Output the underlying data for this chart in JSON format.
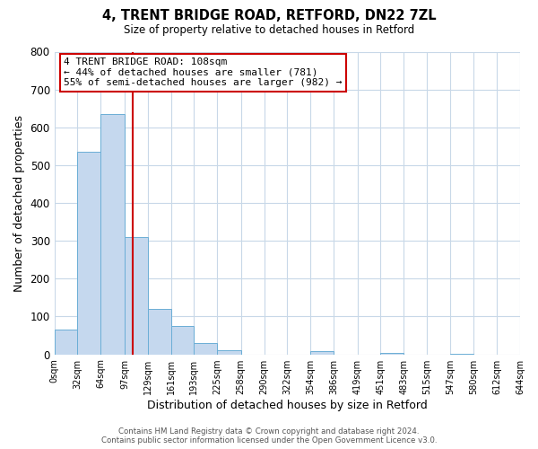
{
  "title": "4, TRENT BRIDGE ROAD, RETFORD, DN22 7ZL",
  "subtitle": "Size of property relative to detached houses in Retford",
  "xlabel": "Distribution of detached houses by size in Retford",
  "ylabel": "Number of detached properties",
  "footer_line1": "Contains HM Land Registry data © Crown copyright and database right 2024.",
  "footer_line2": "Contains public sector information licensed under the Open Government Licence v3.0.",
  "bin_edges": [
    0,
    32,
    64,
    97,
    129,
    161,
    193,
    225,
    258,
    290,
    322,
    354,
    386,
    419,
    451,
    483,
    515,
    547,
    580,
    612,
    644
  ],
  "bin_labels": [
    "0sqm",
    "32sqm",
    "64sqm",
    "97sqm",
    "129sqm",
    "161sqm",
    "193sqm",
    "225sqm",
    "258sqm",
    "290sqm",
    "322sqm",
    "354sqm",
    "386sqm",
    "419sqm",
    "451sqm",
    "483sqm",
    "515sqm",
    "547sqm",
    "580sqm",
    "612sqm",
    "644sqm"
  ],
  "counts": [
    65,
    535,
    635,
    310,
    120,
    75,
    30,
    12,
    0,
    0,
    0,
    8,
    0,
    0,
    3,
    0,
    0,
    2,
    0,
    0
  ],
  "vline_x": 108,
  "property_label": "4 TRENT BRIDGE ROAD: 108sqm",
  "annotation_line1": "← 44% of detached houses are smaller (781)",
  "annotation_line2": "55% of semi-detached houses are larger (982) →",
  "bar_color": "#c5d8ee",
  "bar_edge_color": "#6baed6",
  "vline_color": "#cc0000",
  "annotation_box_edge_color": "#cc0000",
  "background_color": "#ffffff",
  "grid_color": "#c8d8e8",
  "ylim": [
    0,
    800
  ],
  "yticks": [
    0,
    100,
    200,
    300,
    400,
    500,
    600,
    700,
    800
  ]
}
